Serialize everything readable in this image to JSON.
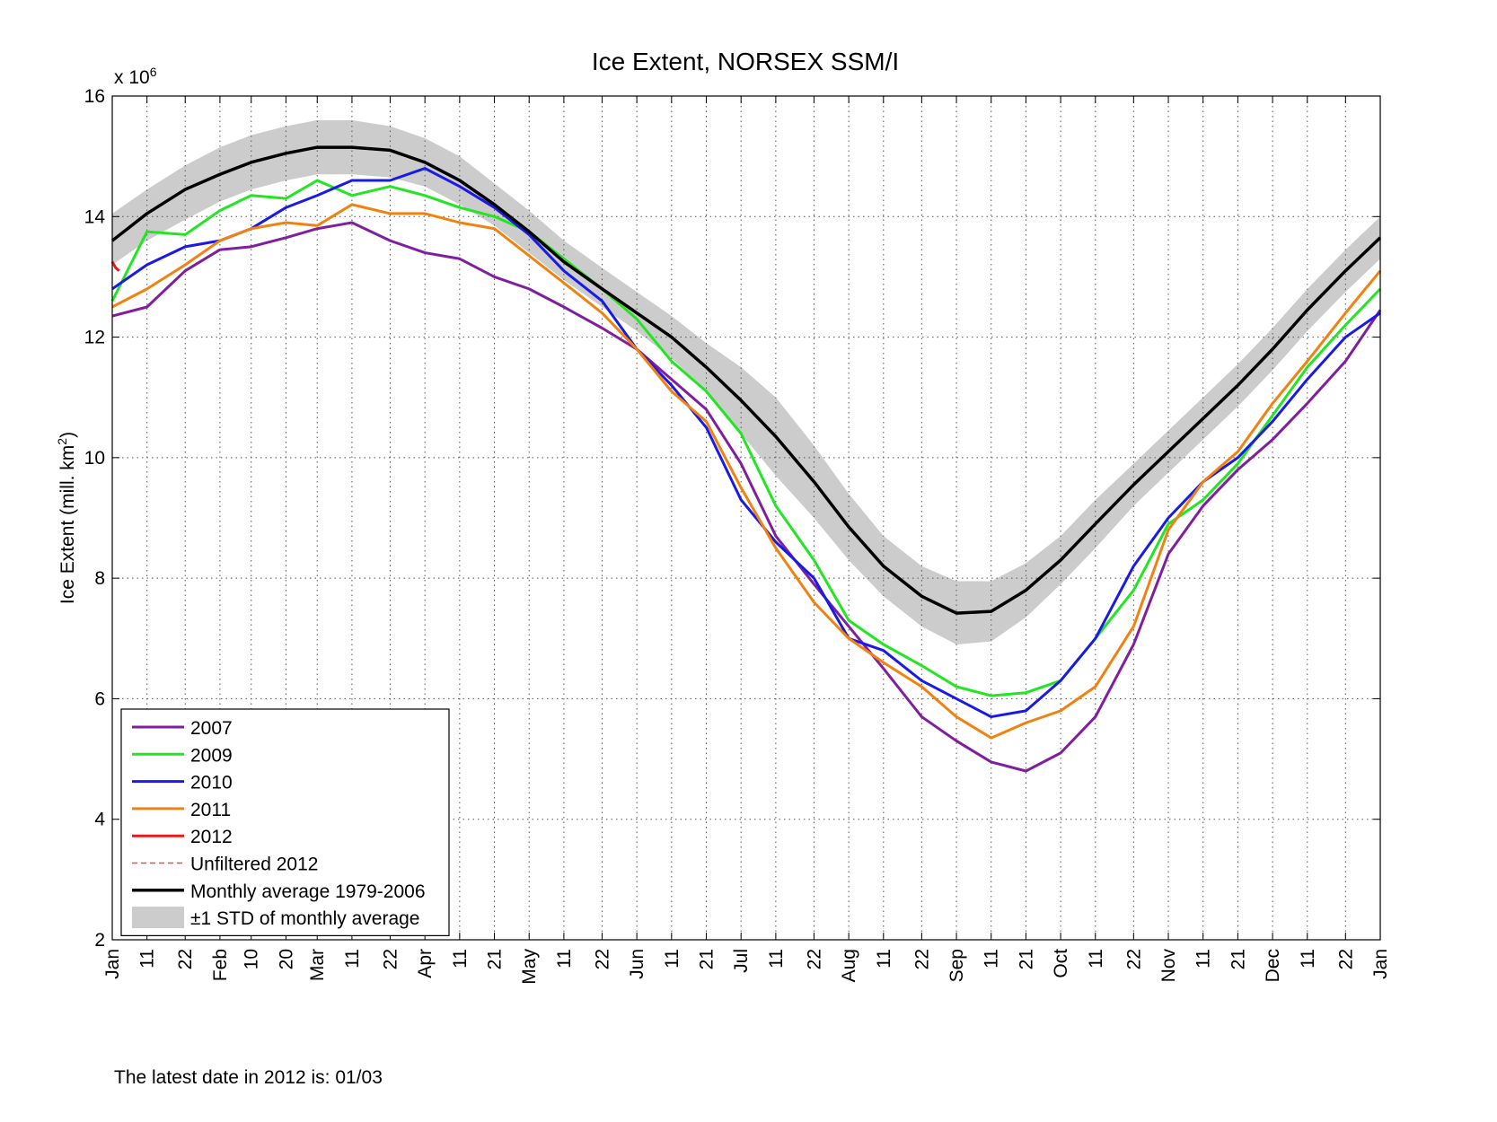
{
  "chart_data": {
    "type": "line",
    "title": "Ice Extent, NORSEX SSM/I",
    "ylabel": "Ice Extent (mill. km",
    "ylabel_sup": "2",
    "ylabel_end": ")",
    "y_multiplier": "x 10",
    "y_multiplier_exp": "6",
    "footnote": "The latest date in 2012 is: 01/03",
    "xlim": [
      1,
      366
    ],
    "ylim": [
      2,
      16
    ],
    "yticks": [
      2,
      4,
      6,
      8,
      10,
      12,
      14,
      16
    ],
    "xticks": [
      {
        "value": 1,
        "label": "Jan"
      },
      11,
      22,
      {
        "value": 32,
        "label": "Feb"
      },
      {
        "value": 41,
        "label": "10"
      },
      {
        "value": 51,
        "label": "20"
      },
      {
        "value": 60,
        "label": "Mar"
      },
      {
        "value": 70,
        "label": "11"
      },
      {
        "value": 81,
        "label": "22"
      },
      {
        "value": 91,
        "label": "Apr"
      },
      {
        "value": 101,
        "label": "11"
      },
      {
        "value": 111,
        "label": "21"
      },
      {
        "value": 121,
        "label": "May"
      },
      {
        "value": 131,
        "label": "11"
      },
      {
        "value": 142,
        "label": "22"
      },
      {
        "value": 152,
        "label": "Jun"
      },
      {
        "value": 162,
        "label": "11"
      },
      {
        "value": 172,
        "label": "21"
      },
      {
        "value": 182,
        "label": "Jul"
      },
      {
        "value": 192,
        "label": "11"
      },
      {
        "value": 203,
        "label": "22"
      },
      {
        "value": 213,
        "label": "Aug"
      },
      {
        "value": 223,
        "label": "11"
      },
      {
        "value": 234,
        "label": "22"
      },
      {
        "value": 244,
        "label": "Sep"
      },
      {
        "value": 254,
        "label": "11"
      },
      {
        "value": 264,
        "label": "21"
      },
      {
        "value": 274,
        "label": "Oct"
      },
      {
        "value": 284,
        "label": "11"
      },
      {
        "value": 295,
        "label": "22"
      },
      {
        "value": 305,
        "label": "Nov"
      },
      {
        "value": 315,
        "label": "11"
      },
      {
        "value": 325,
        "label": "21"
      },
      {
        "value": 335,
        "label": "Dec"
      },
      {
        "value": 345,
        "label": "11"
      },
      {
        "value": 356,
        "label": "22"
      },
      {
        "value": 366,
        "label": "Jan"
      }
    ],
    "grid": true,
    "legend": "lower left",
    "x": [
      1,
      11,
      22,
      32,
      41,
      51,
      60,
      70,
      81,
      91,
      101,
      111,
      121,
      131,
      142,
      152,
      162,
      172,
      182,
      192,
      203,
      213,
      223,
      234,
      244,
      254,
      264,
      274,
      284,
      295,
      305,
      315,
      325,
      335,
      345,
      356,
      366
    ],
    "series": [
      {
        "name": "2007",
        "color": "#7f1f9f",
        "style": "line",
        "values": [
          12.35,
          12.5,
          13.1,
          13.45,
          13.5,
          13.65,
          13.8,
          13.9,
          13.6,
          13.4,
          13.3,
          13.0,
          12.8,
          12.5,
          12.15,
          11.8,
          11.3,
          10.8,
          9.9,
          8.7,
          7.9,
          7.2,
          6.5,
          5.7,
          5.3,
          4.95,
          4.8,
          5.1,
          5.7,
          6.9,
          8.4,
          9.2,
          9.8,
          10.3,
          10.9,
          11.6,
          12.45
        ]
      },
      {
        "name": "2009",
        "color": "#22e622",
        "style": "line",
        "values": [
          12.6,
          13.75,
          13.7,
          14.1,
          14.35,
          14.3,
          14.6,
          14.35,
          14.5,
          14.35,
          14.15,
          14.0,
          13.75,
          13.3,
          12.8,
          12.3,
          11.6,
          11.1,
          10.4,
          9.2,
          8.3,
          7.3,
          6.9,
          6.55,
          6.2,
          6.05,
          6.1,
          6.3,
          7.0,
          7.8,
          8.9,
          9.3,
          9.9,
          10.7,
          11.5,
          12.2,
          12.8
        ]
      },
      {
        "name": "2010",
        "color": "#1a1ae6",
        "style": "line",
        "values": [
          12.8,
          13.2,
          13.5,
          13.6,
          13.8,
          14.15,
          14.35,
          14.6,
          14.6,
          14.8,
          14.5,
          14.15,
          13.7,
          13.1,
          12.6,
          11.8,
          11.2,
          10.5,
          9.3,
          8.6,
          8.0,
          7.0,
          6.8,
          6.3,
          6.0,
          5.7,
          5.8,
          6.3,
          7.0,
          8.2,
          9.0,
          9.6,
          10.0,
          10.6,
          11.3,
          12.0,
          12.4
        ]
      },
      {
        "name": "2011",
        "color": "#f2820f",
        "style": "line",
        "values": [
          12.5,
          12.8,
          13.2,
          13.6,
          13.8,
          13.9,
          13.85,
          14.2,
          14.05,
          14.05,
          13.9,
          13.8,
          13.35,
          12.9,
          12.4,
          11.8,
          11.1,
          10.6,
          9.5,
          8.5,
          7.6,
          7.0,
          6.6,
          6.2,
          5.7,
          5.35,
          5.6,
          5.8,
          6.2,
          7.2,
          8.8,
          9.6,
          10.1,
          10.9,
          11.6,
          12.4,
          13.1
        ]
      },
      {
        "name": "2012",
        "color": "#e61a1a",
        "style": "line",
        "x": [
          1,
          2,
          3
        ],
        "values": [
          13.25,
          13.15,
          13.1
        ]
      },
      {
        "name": "Unfiltered 2012",
        "color": "#e05050",
        "style": "dashed",
        "x": [],
        "values": []
      },
      {
        "name": "Monthly average 1979-2006",
        "color": "#000000",
        "style": "thick",
        "values": [
          13.6,
          14.05,
          14.45,
          14.7,
          14.9,
          15.05,
          15.15,
          15.15,
          15.1,
          14.9,
          14.6,
          14.2,
          13.75,
          13.25,
          12.8,
          12.4,
          12.0,
          11.5,
          10.95,
          10.35,
          9.6,
          8.85,
          8.2,
          7.7,
          7.42,
          7.45,
          7.8,
          8.3,
          8.9,
          9.55,
          10.1,
          10.65,
          11.2,
          11.8,
          12.45,
          13.1,
          13.65
        ]
      },
      {
        "name": "±1 STD of monthly average",
        "color": "#cccccc",
        "style": "band",
        "upper": [
          14.05,
          14.45,
          14.85,
          15.15,
          15.35,
          15.5,
          15.6,
          15.6,
          15.5,
          15.3,
          15.0,
          14.55,
          14.1,
          13.6,
          13.15,
          12.75,
          12.35,
          11.9,
          11.5,
          11.0,
          10.2,
          9.4,
          8.7,
          8.2,
          7.95,
          7.95,
          8.25,
          8.7,
          9.3,
          9.9,
          10.45,
          11.0,
          11.55,
          12.15,
          12.8,
          13.45,
          14.0
        ],
        "lower": [
          13.2,
          13.6,
          13.95,
          14.25,
          14.45,
          14.6,
          14.7,
          14.7,
          14.65,
          14.5,
          14.2,
          13.85,
          13.4,
          12.95,
          12.5,
          12.1,
          11.65,
          11.1,
          10.4,
          9.7,
          9.0,
          8.3,
          7.7,
          7.2,
          6.9,
          6.95,
          7.35,
          7.9,
          8.5,
          9.2,
          9.75,
          10.3,
          10.85,
          11.45,
          12.1,
          12.75,
          13.3
        ]
      }
    ]
  }
}
